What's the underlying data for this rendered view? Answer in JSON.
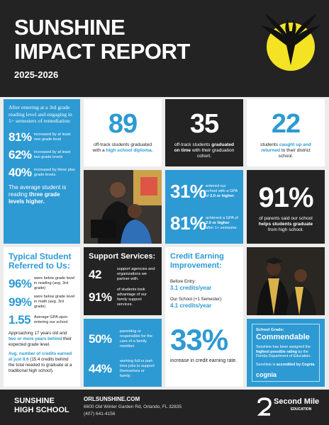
{
  "header": {
    "title_line1": "SUNSHINE",
    "title_line2": "IMPACT REPORT",
    "years": "2025-2026"
  },
  "reading": {
    "intro": "After entering at a 3rd grade reading level and engaging in 1+ semesters of remediation:",
    "stats": [
      {
        "value": "81%",
        "label": "increased by at least one grade level"
      },
      {
        "value": "62%",
        "label": "increased by at least two grade levels"
      },
      {
        "value": "40%",
        "label": "increased by three plus grade levels."
      }
    ],
    "summary": [
      "The average student is reading ",
      "three grade levels higher."
    ]
  },
  "graduated": {
    "value": "89",
    "text": [
      "off-track students graduated with a ",
      "high school diploma."
    ]
  },
  "on_time": {
    "value": "35",
    "text": [
      "off-track students ",
      "graduated on time",
      " with their graduation cohort."
    ]
  },
  "returned": {
    "value": "22",
    "text": [
      "students ",
      "caught up and returned",
      " to their district school."
    ]
  },
  "gpa": {
    "stats": [
      {
        "value": "31%",
        "text": [
          "entered our school with a GPA of ",
          "2.0 or higher",
          "."
        ]
      },
      {
        "value": "81%",
        "text": [
          "achieved a GPA of ",
          "2.0 or higher",
          " after 1+ semester."
        ]
      }
    ]
  },
  "parents": {
    "value": "91%",
    "text": [
      "of parents said our school ",
      "helps students graduate",
      " from high school."
    ]
  },
  "typical": {
    "title": "Typical Student Referred to Us:",
    "stats": [
      {
        "value": "96%",
        "label": "were below grade level in reading (avg. 3rd grade)"
      },
      {
        "value": "99%",
        "label": "were below grade level in math (avg. 3rd grade)"
      },
      {
        "value": "1.55",
        "label": "Average GPA upon entering our school"
      }
    ],
    "age": [
      "Approaching 17 years old and ",
      "two or more years behind",
      " their expected grade level."
    ],
    "credits": [
      "Avg. number of credits earned at just 8.6",
      " (15.4 credits behind the total needed to graduate at a traditional high school)."
    ]
  },
  "support": {
    "title": "Support Services:",
    "stats": [
      {
        "value": "42",
        "label": "support agencies and organizations we partner with."
      },
      {
        "value": "91%",
        "label": "of students took advantage of our family support services."
      }
    ]
  },
  "family": {
    "stats": [
      {
        "value": "50%",
        "label": "parenting or responsible for the care of a family member"
      },
      {
        "value": "44%",
        "label": "working full or part-time jobs to support themselves or family."
      }
    ]
  },
  "credit": {
    "title": "Credit Earning Improvement:",
    "before_label": "Before Entry:",
    "before_value": "3.1 credits/year",
    "after_label": "Our School (+1 Semester):",
    "after_value": "4.1 credits/year",
    "increase": "33%",
    "increase_label": "increase in credit earning rate."
  },
  "grade": {
    "label": "School Grade:",
    "value": "Commendable",
    "text": [
      "Sunshine has been assigned the ",
      "highest possible rating",
      " by the Florida Department of Education."
    ],
    "accredited": [
      "Sunshine is ",
      "accredited by Cognia",
      "."
    ],
    "logo": "cognia"
  },
  "footer": {
    "school": "SUNSHINE HIGH SCHOOL",
    "website": "ORLSUNSHINE.COM",
    "address": "6600 Old Winter Garden Rd, Orlando, FL 32835",
    "phone": "(407) 641-4156",
    "brand": "Second Mile",
    "brand_sub": "EDUCATION"
  }
}
